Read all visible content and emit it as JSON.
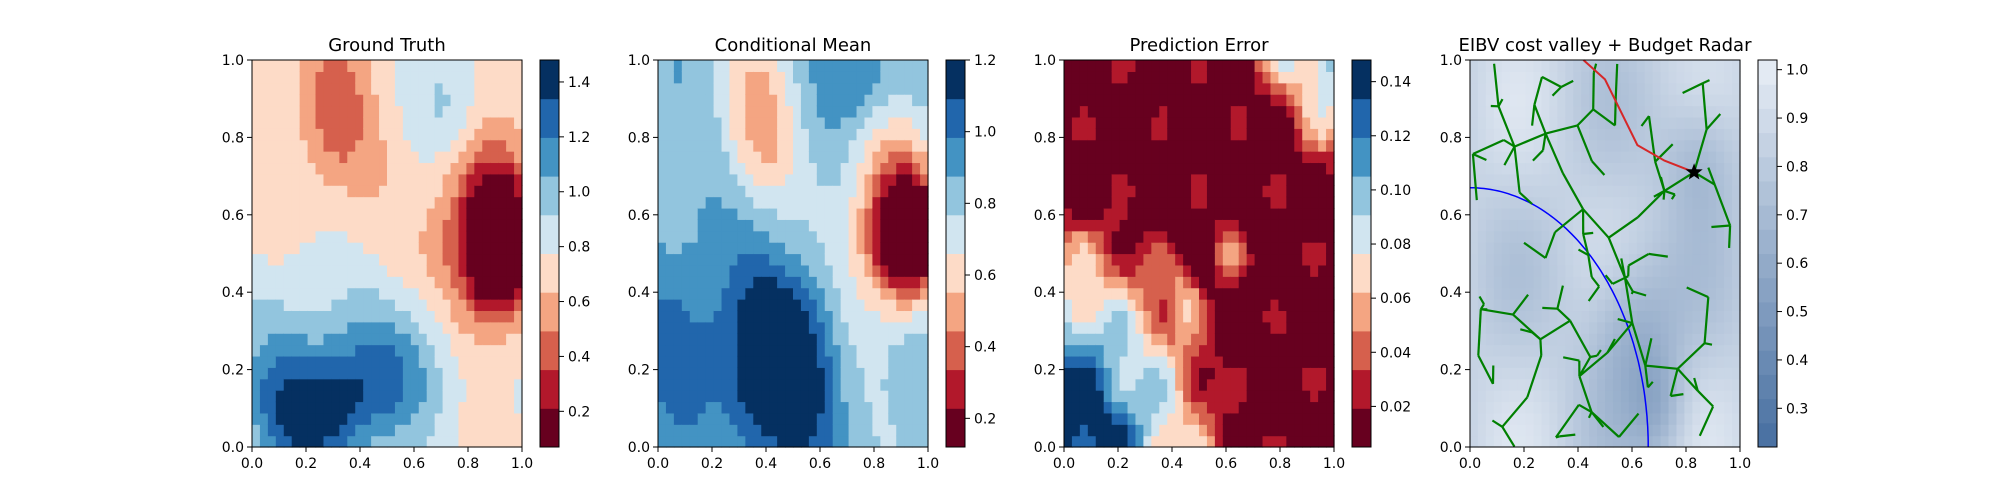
{
  "chart_data": [
    {
      "type": "heatmap",
      "title": "Ground Truth",
      "x_ticks": [
        "0.0",
        "0.2",
        "0.4",
        "0.6",
        "0.8",
        "1.0"
      ],
      "y_ticks": [
        "0.0",
        "0.2",
        "0.4",
        "0.6",
        "0.8",
        "1.0"
      ],
      "xlim": [
        0,
        1
      ],
      "ylim": [
        0,
        1
      ],
      "colormap": "RdBu",
      "colorbar_ticks": [
        "0.2",
        "0.4",
        "0.6",
        "0.8",
        "1.0",
        "1.2",
        "1.4"
      ],
      "colorbar_range": [
        0.07,
        1.48
      ],
      "features": [
        {
          "x": 0.92,
          "y": 0.52,
          "v": -1.0,
          "sx": 0.07,
          "sy": 0.1
        },
        {
          "x": 0.85,
          "y": 0.55,
          "v": -0.55,
          "sx": 0.11,
          "sy": 0.18
        },
        {
          "x": 0.3,
          "y": 0.85,
          "v": -0.3,
          "sx": 0.1,
          "sy": 0.14
        },
        {
          "x": 0.25,
          "y": 0.08,
          "v": 0.6,
          "sx": 0.13,
          "sy": 0.1
        },
        {
          "x": 0.5,
          "y": 0.2,
          "v": 0.45,
          "sx": 0.2,
          "sy": 0.14
        },
        {
          "x": 0.1,
          "y": 0.2,
          "v": 0.3,
          "sx": 0.12,
          "sy": 0.2
        },
        {
          "x": 0.75,
          "y": 0.9,
          "v": 0.25,
          "sx": 0.1,
          "sy": 0.12
        }
      ],
      "base": 0.72
    },
    {
      "type": "heatmap",
      "title": "Conditional Mean",
      "x_ticks": [
        "0.0",
        "0.2",
        "0.4",
        "0.6",
        "0.8",
        "1.0"
      ],
      "y_ticks": [
        "0.0",
        "0.2",
        "0.4",
        "0.6",
        "0.8",
        "1.0"
      ],
      "xlim": [
        0,
        1
      ],
      "ylim": [
        0,
        1
      ],
      "colormap": "RdBu",
      "colorbar_ticks": [
        "0.2",
        "0.4",
        "0.6",
        "0.8",
        "1.0",
        "1.2"
      ],
      "colorbar_range": [
        0.12,
        1.2
      ],
      "features": [
        {
          "x": 0.93,
          "y": 0.55,
          "v": -0.85,
          "sx": 0.08,
          "sy": 0.1
        },
        {
          "x": 0.85,
          "y": 0.58,
          "v": -0.4,
          "sx": 0.12,
          "sy": 0.18
        },
        {
          "x": 0.45,
          "y": 0.2,
          "v": 0.55,
          "sx": 0.13,
          "sy": 0.17
        },
        {
          "x": 0.38,
          "y": 0.85,
          "v": -0.3,
          "sx": 0.1,
          "sy": 0.15
        },
        {
          "x": 0.75,
          "y": 0.95,
          "v": 0.2,
          "sx": 0.1,
          "sy": 0.08
        },
        {
          "x": 0.1,
          "y": 0.3,
          "v": 0.2,
          "sx": 0.15,
          "sy": 0.2
        }
      ],
      "base": 0.82
    },
    {
      "type": "heatmap",
      "title": "Prediction Error",
      "x_ticks": [
        "0.0",
        "0.2",
        "0.4",
        "0.6",
        "0.8",
        "1.0"
      ],
      "y_ticks": [
        "0.0",
        "0.2",
        "0.4",
        "0.6",
        "0.8",
        "1.0"
      ],
      "xlim": [
        0,
        1
      ],
      "ylim": [
        0,
        1
      ],
      "colormap": "RdBu",
      "colorbar_ticks": [
        "0.02",
        "0.04",
        "0.06",
        "0.08",
        "0.10",
        "0.12",
        "0.14"
      ],
      "colorbar_range": [
        0.005,
        0.148
      ],
      "mode": "error"
    },
    {
      "type": "heatmap",
      "title": "EIBV cost valley + Budget Radar",
      "x_ticks": [
        "0.0",
        "0.2",
        "0.4",
        "0.6",
        "0.8",
        "1.0"
      ],
      "y_ticks": [
        "0.0",
        "0.2",
        "0.4",
        "0.6",
        "0.8",
        "1.0"
      ],
      "xlim": [
        0,
        1
      ],
      "ylim": [
        0,
        1
      ],
      "colormap": "RdBu",
      "colorbar_ticks": [
        "0.3",
        "0.4",
        "0.5",
        "0.6",
        "0.7",
        "0.8",
        "0.9",
        "1.0"
      ],
      "colorbar_range": [
        0.22,
        1.02
      ],
      "mode": "cost",
      "current_location": {
        "x": 0.83,
        "y": 0.71
      },
      "path": [
        [
          0.42,
          1.0
        ],
        [
          0.5,
          0.95
        ],
        [
          0.62,
          0.78
        ],
        [
          0.72,
          0.74
        ],
        [
          0.83,
          0.71
        ]
      ],
      "path_color": "#d62728",
      "budget_ellipse_color": "#0000ff",
      "tree_color": "#008000",
      "marker_color": "#000000"
    }
  ]
}
